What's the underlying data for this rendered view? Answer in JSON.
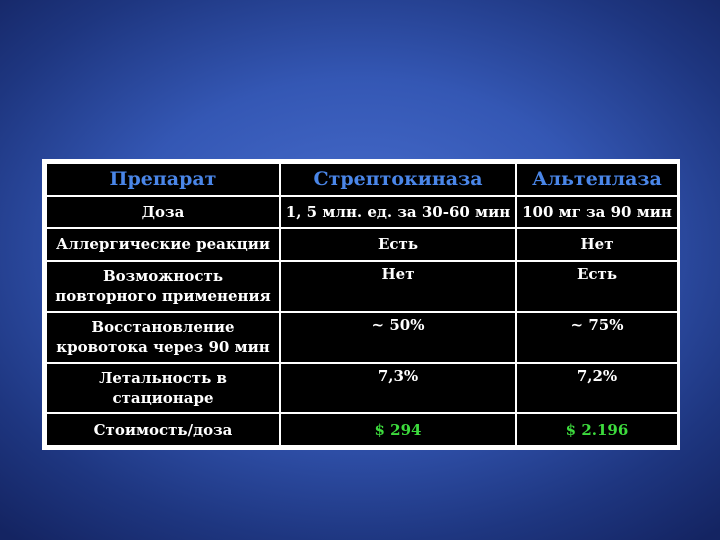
{
  "table": {
    "header": {
      "col1": "Препарат",
      "col2": "Стрептокиназа",
      "col3": "Альтеплаза"
    },
    "rows": [
      {
        "label": "Доза",
        "streptokinase": "1, 5 млн. ед. за 30-60 мин",
        "alteplase": "100 мг за 90 мин"
      },
      {
        "label": "Аллергические реакции",
        "streptokinase": "Есть",
        "alteplase": "Нет"
      },
      {
        "label": "Возможность повторного применения",
        "streptokinase": "Нет",
        "alteplase": "Есть"
      },
      {
        "label": "Восстановление кровотока через 90 мин",
        "streptokinase": "~ 50%",
        "alteplase": "~ 75%"
      },
      {
        "label": "Летальность в стационаре",
        "streptokinase": "7,3%",
        "alteplase": "7,2%"
      },
      {
        "label": "Стоимость/доза",
        "streptokinase": "$ 294",
        "alteplase": "$ 2.196"
      }
    ]
  },
  "colors": {
    "background": "#3457b4",
    "header_text": "#4a86e8",
    "cell_text": "#ffffff",
    "cost_text": "#3ddb3d",
    "cell_background": "#000000",
    "grid_lines": "#ffffff"
  }
}
